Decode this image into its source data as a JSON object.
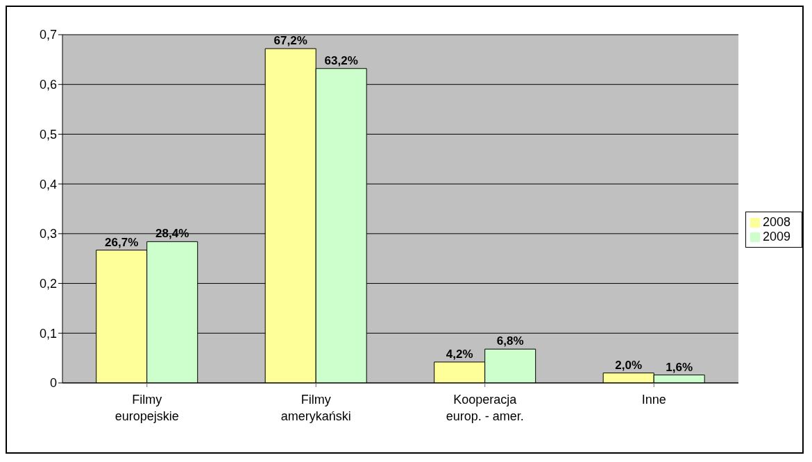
{
  "chart_data": {
    "type": "bar",
    "categories": [
      "Filmy europejskie",
      "Filmy amerykański",
      "Kooperacja europ. - amer.",
      "Inne"
    ],
    "series": [
      {
        "name": "2008",
        "color": "#ffff99",
        "values": [
          0.267,
          0.672,
          0.042,
          0.02
        ],
        "value_labels": [
          "26,7%",
          "67,2%",
          "4,2%",
          "2,0%"
        ]
      },
      {
        "name": "2009",
        "color": "#ccffcc",
        "values": [
          0.284,
          0.632,
          0.068,
          0.016
        ],
        "value_labels": [
          "28,4%",
          "63,2%",
          "6,8%",
          "1,6%"
        ]
      }
    ],
    "ylim": [
      0,
      0.7
    ],
    "yticks": [
      0,
      {
        "value": 0.1,
        "label": "0,1"
      },
      {
        "value": 0.2,
        "label": "0,2"
      },
      {
        "value": 0.3,
        "label": "0,3"
      },
      {
        "value": 0.4,
        "label": "0,4"
      },
      {
        "value": 0.5,
        "label": "0,5"
      },
      {
        "value": 0.6,
        "label": "0,6"
      },
      {
        "value": 0.7,
        "label": "0,7"
      }
    ],
    "grid": "y",
    "legend": "right"
  }
}
